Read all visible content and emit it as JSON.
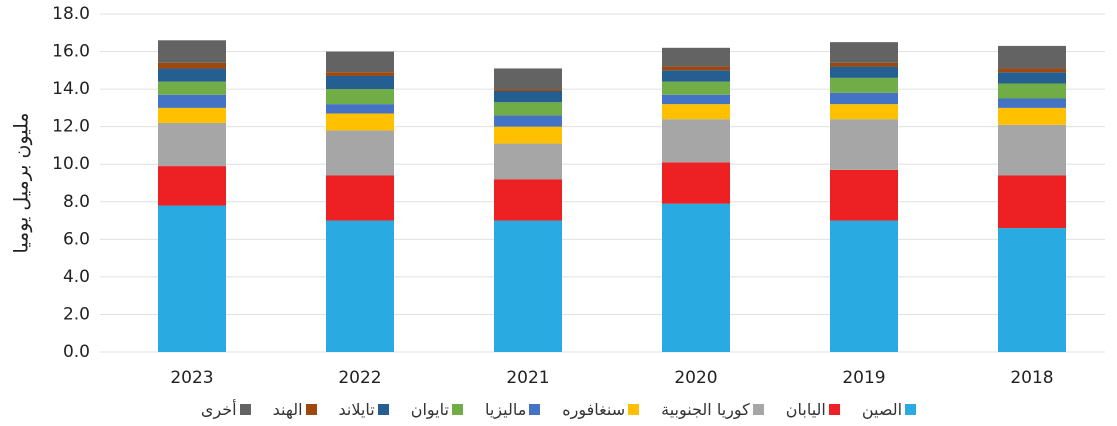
{
  "chart_data": {
    "type": "bar",
    "stacked": true,
    "y_label": "مليون برميل يوميا",
    "categories": [
      "2023",
      "2022",
      "2021",
      "2020",
      "2019",
      "2018"
    ],
    "series": [
      {
        "name": "الصين",
        "color": "#29abe2",
        "values": [
          7.8,
          7.0,
          7.0,
          7.9,
          7.0,
          6.6
        ]
      },
      {
        "name": "اليابان",
        "color": "#ed2024",
        "values": [
          2.1,
          2.4,
          2.2,
          2.2,
          2.7,
          2.8
        ]
      },
      {
        "name": "كوريا الجنوبية",
        "color": "#a6a6a6",
        "values": [
          2.3,
          2.4,
          1.9,
          2.3,
          2.7,
          2.7
        ]
      },
      {
        "name": "سنغافوره",
        "color": "#ffc000",
        "values": [
          0.8,
          0.9,
          0.9,
          0.8,
          0.8,
          0.9
        ]
      },
      {
        "name": "ماليزيا",
        "color": "#4472c4",
        "values": [
          0.7,
          0.5,
          0.6,
          0.5,
          0.6,
          0.5
        ]
      },
      {
        "name": "تايوان",
        "color": "#70ad47",
        "values": [
          0.7,
          0.8,
          0.7,
          0.7,
          0.8,
          0.8
        ]
      },
      {
        "name": "تايلاند",
        "color": "#255e91",
        "values": [
          0.7,
          0.7,
          0.6,
          0.6,
          0.6,
          0.6
        ]
      },
      {
        "name": "الهند",
        "color": "#9e480e",
        "values": [
          0.3,
          0.2,
          0.1,
          0.2,
          0.2,
          0.2
        ]
      },
      {
        "name": "أخرى",
        "color": "#636363",
        "values": [
          1.2,
          1.1,
          1.1,
          1.0,
          1.1,
          1.2
        ]
      }
    ],
    "ylim": [
      0,
      18
    ],
    "yticks": [
      {
        "value": 0,
        "label": "0.0"
      },
      {
        "value": 2,
        "label": "2.0"
      },
      {
        "value": 4,
        "label": "4.0"
      },
      {
        "value": 6,
        "label": "6.0"
      },
      {
        "value": 8,
        "label": "8.0"
      },
      {
        "value": 10,
        "label": "10.0"
      },
      {
        "value": 12,
        "label": "12.0"
      },
      {
        "value": 14,
        "label": "14.0"
      },
      {
        "value": 16,
        "label": "16.0"
      },
      {
        "value": 18,
        "label": "18.0"
      }
    ],
    "grid": true,
    "legend": "bottom"
  }
}
